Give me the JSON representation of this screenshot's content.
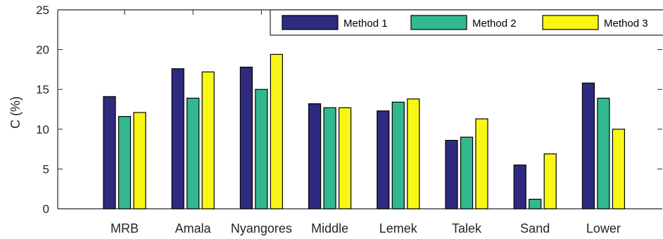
{
  "chart_data": {
    "type": "bar",
    "title": "",
    "xlabel": "",
    "ylabel": "C (%)",
    "ylim": [
      0,
      25
    ],
    "yticks": [
      0,
      5,
      10,
      15,
      20,
      25
    ],
    "grid": false,
    "legend_position": "top-right",
    "categories": [
      "MRB",
      "Amala",
      "Nyangores",
      "Middle",
      "Lemek",
      "Talek",
      "Sand",
      "Lower"
    ],
    "series": [
      {
        "name": "Method 1",
        "color": "#2e2a80",
        "values": [
          14.1,
          17.6,
          17.8,
          13.2,
          12.3,
          8.6,
          5.5,
          15.8
        ]
      },
      {
        "name": "Method 2",
        "color": "#32b88f",
        "values": [
          11.6,
          13.9,
          15.0,
          12.7,
          13.4,
          9.0,
          1.2,
          13.9
        ]
      },
      {
        "name": "Method 3",
        "color": "#f8f614",
        "values": [
          12.1,
          17.2,
          19.4,
          12.7,
          13.8,
          11.3,
          6.9,
          10.0
        ]
      }
    ]
  }
}
